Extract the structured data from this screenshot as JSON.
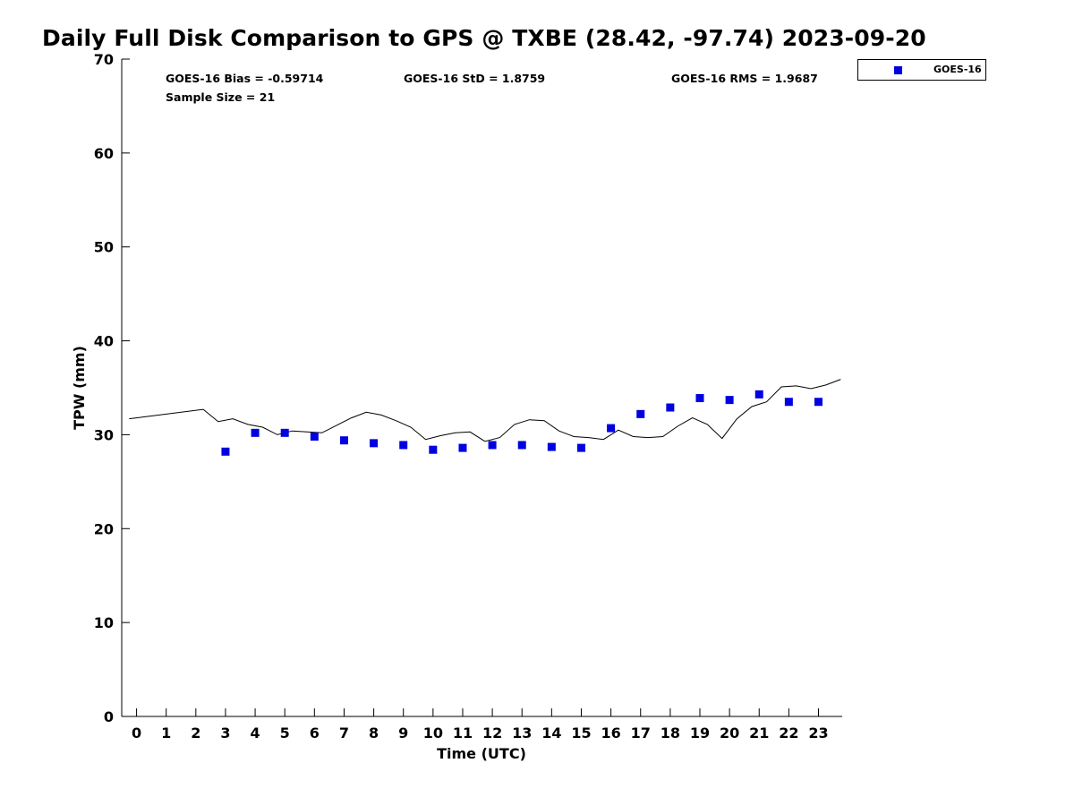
{
  "chart_data": {
    "type": "scatter",
    "title": "Daily Full Disk Comparison to GPS @ TXBE (28.42, -97.74) 2023-09-20",
    "xlabel": "Time (UTC)",
    "ylabel": "TPW (mm)",
    "xlim": [
      -0.5,
      23.8
    ],
    "ylim": [
      0,
      70
    ],
    "xticks": [
      0,
      1,
      2,
      3,
      4,
      5,
      6,
      7,
      8,
      9,
      10,
      11,
      12,
      13,
      14,
      15,
      16,
      17,
      18,
      19,
      20,
      21,
      22,
      23
    ],
    "yticks": [
      0,
      10,
      20,
      30,
      40,
      50,
      60,
      70
    ],
    "grid": false,
    "legend_position": "top-right (outside plot)",
    "stats": {
      "bias": "GOES-16 Bias = -0.59714",
      "std": "GOES-16 StD = 1.8759",
      "rms": "GOES-16 RMS = 1.9687",
      "sample": "Sample Size = 21"
    },
    "series": [
      {
        "name": "GOES-16",
        "kind": "scatter",
        "marker": "square",
        "color": "#0000e0",
        "x": [
          3,
          4,
          5,
          6,
          7,
          8,
          9,
          10,
          11,
          12,
          13,
          14,
          15,
          16,
          17,
          18,
          19,
          20,
          21,
          22,
          23
        ],
        "y": [
          28.2,
          30.2,
          30.2,
          29.8,
          29.4,
          29.1,
          28.9,
          28.4,
          28.6,
          28.9,
          28.9,
          28.7,
          28.6,
          30.7,
          32.2,
          32.9,
          33.9,
          33.7,
          34.3,
          33.5,
          33.5
        ]
      },
      {
        "kind": "line",
        "color": "#000000",
        "x": [
          -0.25,
          2.25,
          2.75,
          3.25,
          3.75,
          4.25,
          4.75,
          5.25,
          5.75,
          6.25,
          6.75,
          7.25,
          7.75,
          8.25,
          8.75,
          9.25,
          9.75,
          10.25,
          10.75,
          11.25,
          11.75,
          12.25,
          12.75,
          13.25,
          13.75,
          14.25,
          14.75,
          15.25,
          15.75,
          16.25,
          16.75,
          17.25,
          17.75,
          18.25,
          18.75,
          19.25,
          19.75,
          20.25,
          20.75,
          21.25,
          21.75,
          22.25,
          22.75,
          23.25,
          23.75
        ],
        "y": [
          31.7,
          32.7,
          31.4,
          31.7,
          31.1,
          30.8,
          30.0,
          30.4,
          30.3,
          30.2,
          31.0,
          31.8,
          32.4,
          32.1,
          31.5,
          30.8,
          29.5,
          29.9,
          30.2,
          30.3,
          29.3,
          29.7,
          31.1,
          31.6,
          31.5,
          30.4,
          29.8,
          29.7,
          29.5,
          30.5,
          29.8,
          29.7,
          29.8,
          30.9,
          31.8,
          31.1,
          29.6,
          31.7,
          33.0,
          33.5,
          35.1,
          35.2,
          34.9,
          35.3,
          35.9
        ]
      }
    ]
  }
}
